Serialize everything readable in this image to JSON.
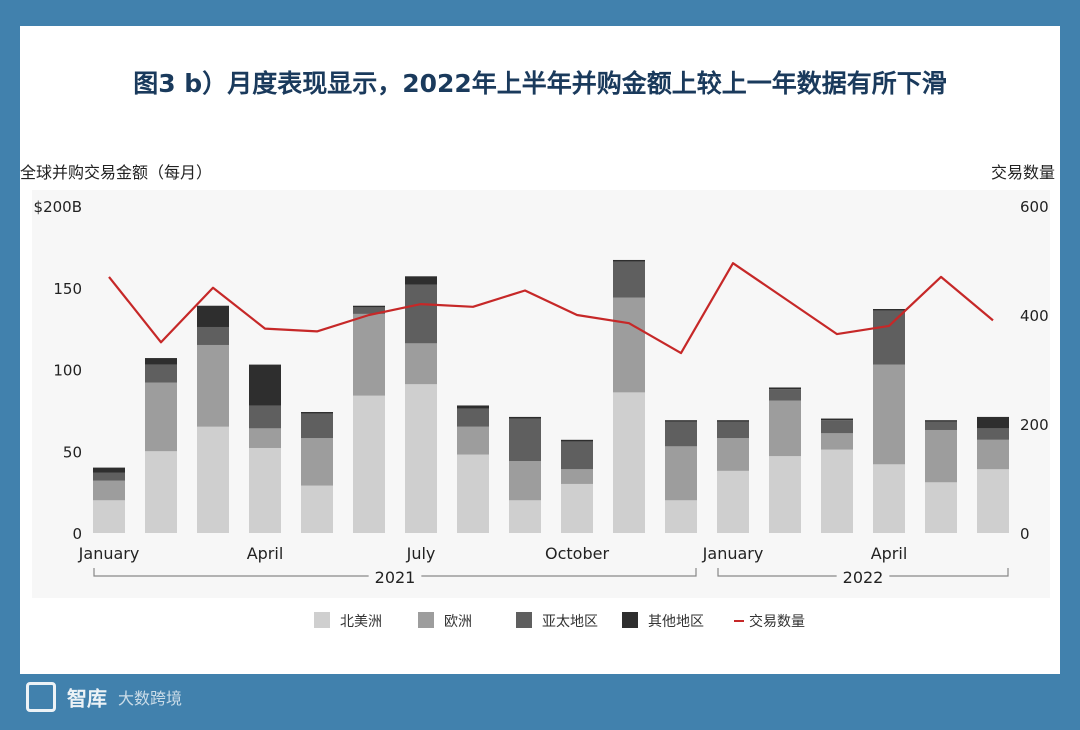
{
  "title": "图3 b）月度表现显示，2022年上半年并购金额上较上一年数据有所下滑",
  "left_axis_title": "全球并购交易金额（每月）",
  "right_axis_title": "交易数量",
  "watermark": {
    "brand": "智库",
    "sub": "大数跨境"
  },
  "colors": {
    "background": "#4181ad",
    "title": "#1a3a5c",
    "na": "#cfcfcf",
    "eu": "#9d9d9d",
    "apac": "#5f5f5f",
    "other": "#2e2e2e",
    "line": "#c62828"
  },
  "chart_data": {
    "type": "bar",
    "stacked": true,
    "categories": [
      "2021-01",
      "2021-02",
      "2021-03",
      "2021-04",
      "2021-05",
      "2021-06",
      "2021-07",
      "2021-08",
      "2021-09",
      "2021-10",
      "2021-11",
      "2021-12",
      "2022-01",
      "2022-02",
      "2022-03",
      "2022-04",
      "2022-05",
      "2022-06"
    ],
    "x_tick_labels": [
      {
        "index": 0,
        "label": "January"
      },
      {
        "index": 3,
        "label": "April"
      },
      {
        "index": 6,
        "label": "July"
      },
      {
        "index": 9,
        "label": "October"
      },
      {
        "index": 12,
        "label": "January"
      },
      {
        "index": 15,
        "label": "April"
      }
    ],
    "year_groups": [
      {
        "label": "2021",
        "start": 0,
        "end": 11
      },
      {
        "label": "2022",
        "start": 12,
        "end": 17
      }
    ],
    "series": [
      {
        "name": "北美洲",
        "values": [
          20,
          50,
          65,
          52,
          29,
          84,
          91,
          48,
          20,
          30,
          86,
          20,
          38,
          47,
          51,
          42,
          31,
          39
        ]
      },
      {
        "name": "欧洲",
        "values": [
          12,
          42,
          50,
          12,
          29,
          50,
          25,
          17,
          24,
          9,
          58,
          33,
          20,
          34,
          10,
          61,
          32,
          18
        ]
      },
      {
        "name": "亚太地区",
        "values": [
          5,
          11,
          11,
          14,
          15,
          4,
          36,
          11,
          26,
          17,
          22,
          15,
          10,
          7,
          8,
          33,
          5,
          7
        ]
      },
      {
        "name": "其他地区",
        "values": [
          3,
          4,
          13,
          25,
          1,
          1,
          5,
          2,
          1,
          1,
          1,
          1,
          1,
          1,
          1,
          1,
          1,
          7
        ]
      }
    ],
    "line_series": {
      "name": "交易数量",
      "values": [
        470,
        350,
        450,
        375,
        370,
        400,
        420,
        415,
        445,
        400,
        385,
        330,
        495,
        430,
        365,
        380,
        470,
        390
      ]
    },
    "left_axis": {
      "ylim": [
        0,
        200
      ],
      "ticks": [
        0,
        50,
        100,
        150
      ],
      "top_label": "$200B"
    },
    "right_axis": {
      "ylim": [
        0,
        600
      ],
      "ticks": [
        0,
        200,
        400,
        600
      ]
    },
    "legend": [
      "北美洲",
      "欧洲",
      "亚太地区",
      "其他地区",
      "交易数量"
    ],
    "legend_position": "bottom",
    "grid": false
  }
}
